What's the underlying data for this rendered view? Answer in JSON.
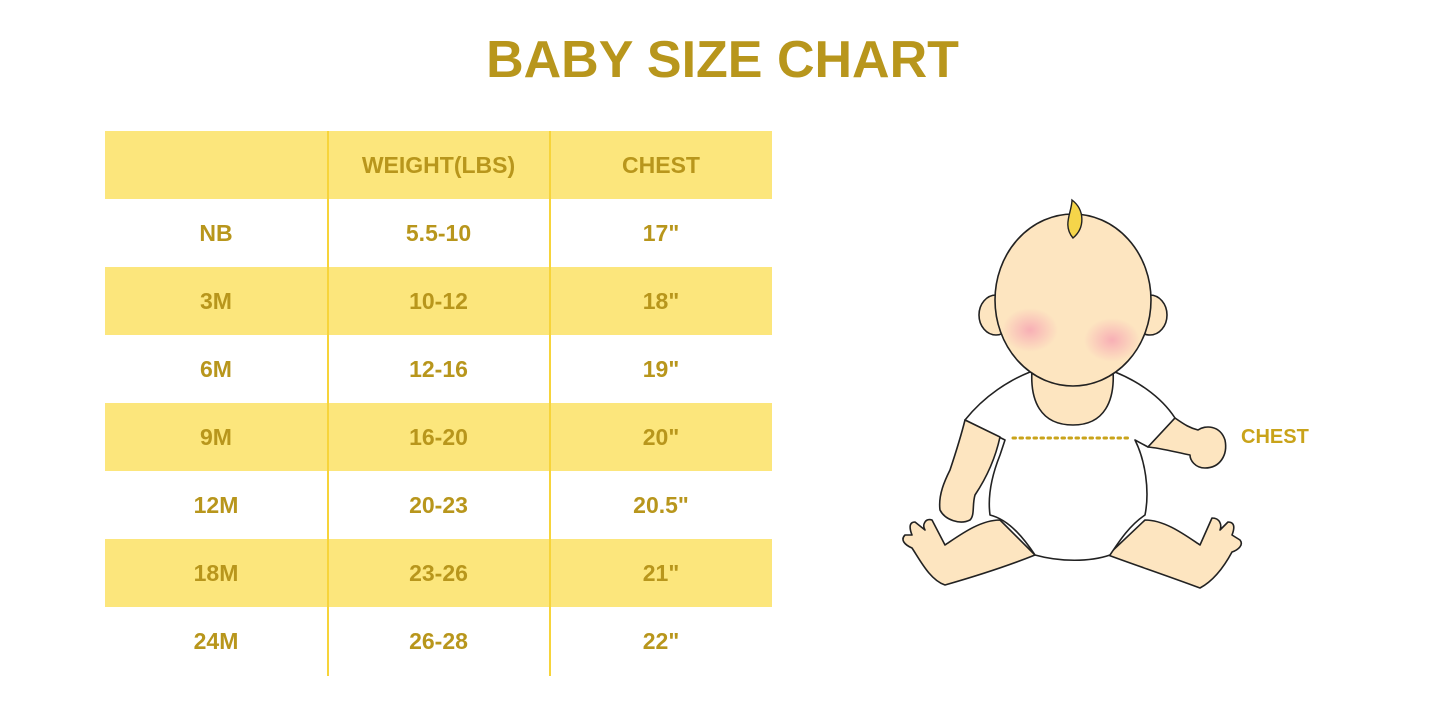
{
  "title": "BABY SIZE CHART",
  "colors": {
    "accent": "#b8961c",
    "row_shade": "#fce67c",
    "divider": "#f7d43a",
    "skin": "#fde5c0",
    "hair": "#f5d54a"
  },
  "table": {
    "headers": [
      "",
      "WEIGHT(LBS)",
      "CHEST"
    ],
    "rows": [
      [
        "NB",
        "5.5-10",
        "17\""
      ],
      [
        "3M",
        "10-12",
        "18\""
      ],
      [
        "6M",
        "12-16",
        "19\""
      ],
      [
        "9M",
        "16-20",
        "20\""
      ],
      [
        "12M",
        "20-23",
        "20.5\""
      ],
      [
        "18M",
        "23-26",
        "21\""
      ],
      [
        "24M",
        "26-28",
        "22\""
      ]
    ]
  },
  "illustration": {
    "chest_label": "CHEST"
  }
}
